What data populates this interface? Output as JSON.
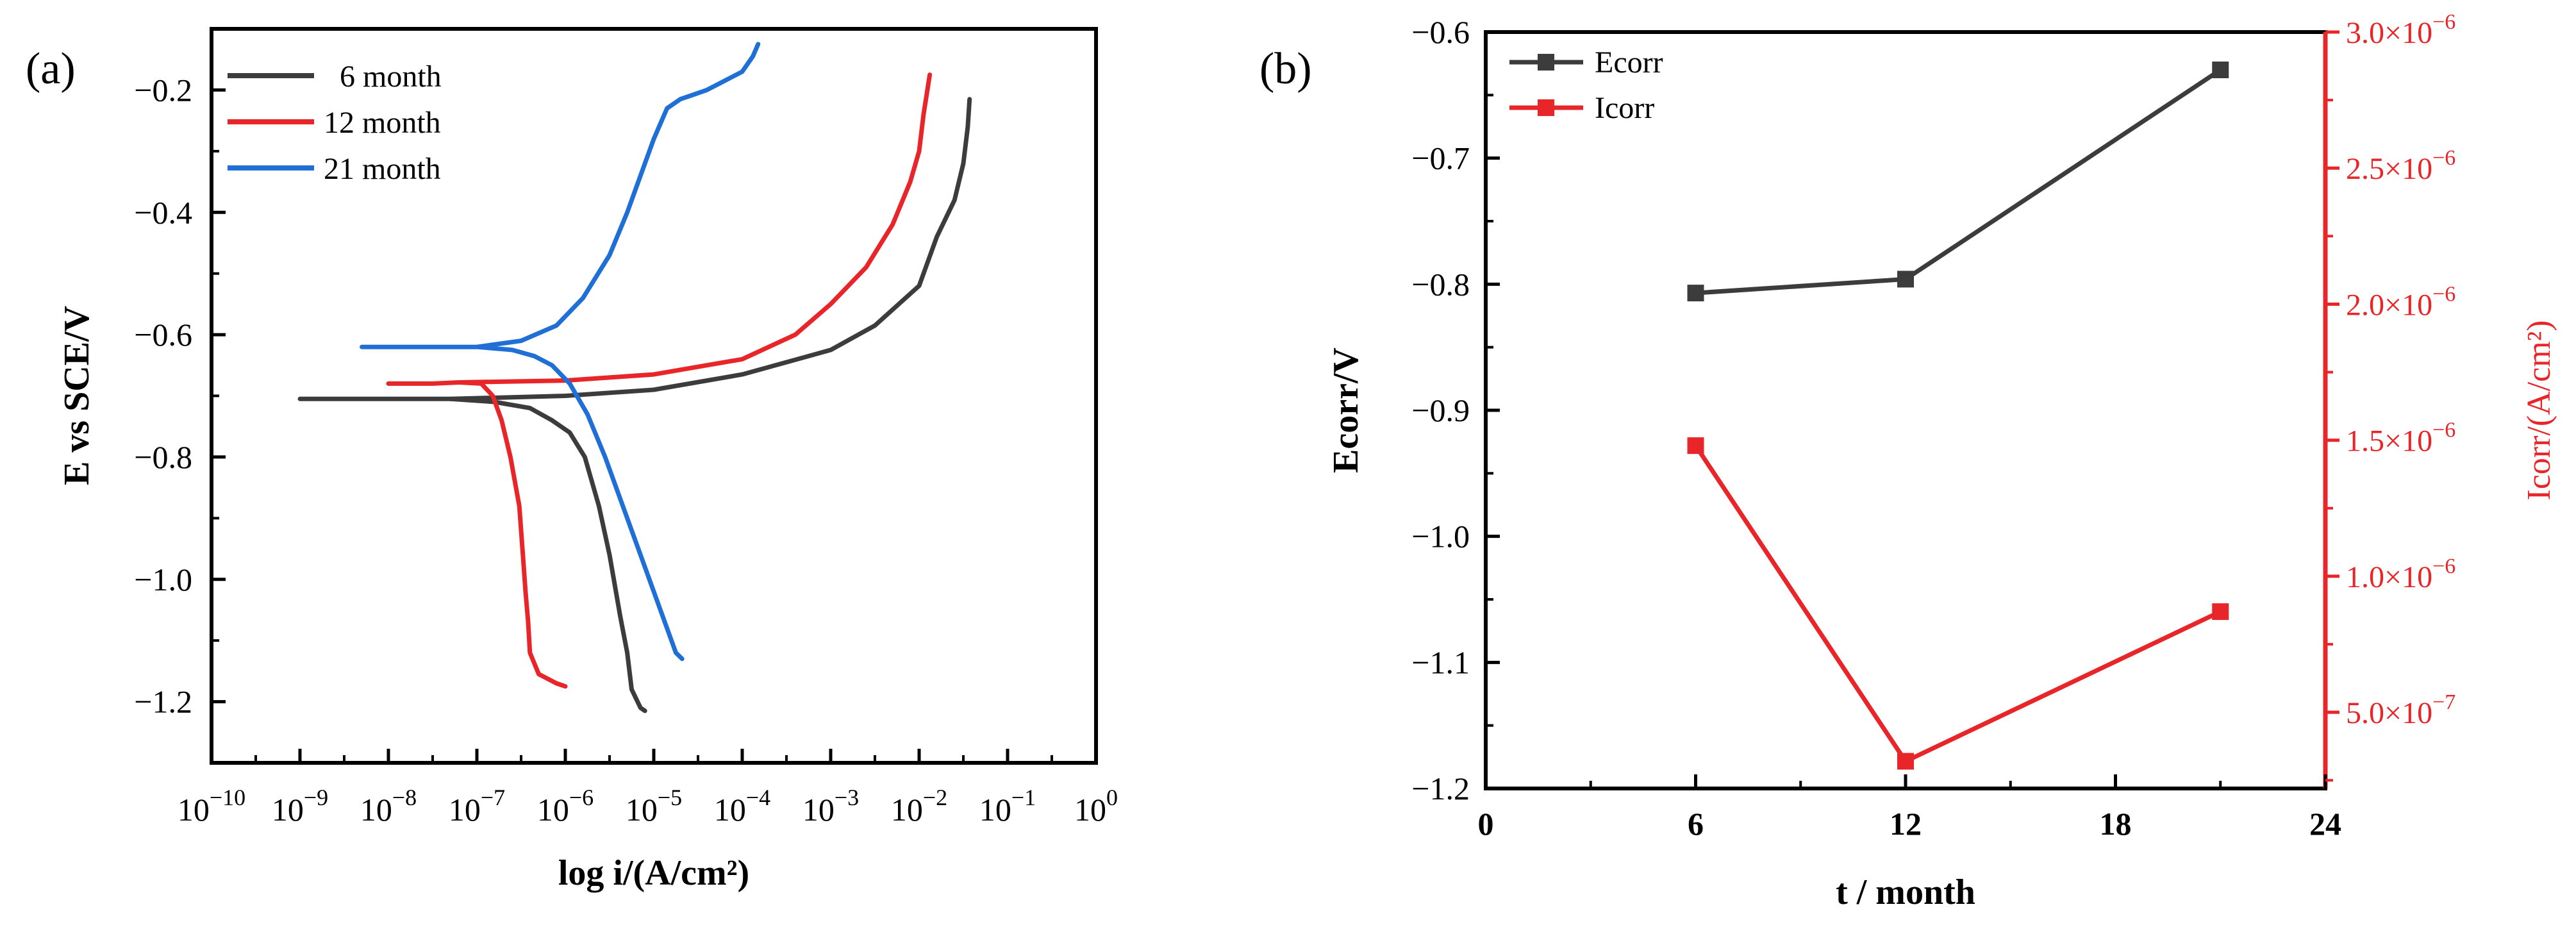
{
  "chart_data": [
    {
      "type": "line",
      "panel_label": "(a)",
      "xlabel": "log i/(A/cm²)",
      "ylabel": "E vs SCE/V",
      "xscale": "log",
      "xlim": [
        -10,
        0
      ],
      "ylim": [
        -1.3,
        -0.1
      ],
      "x_tick_exponents": [
        -10,
        -9,
        -8,
        -7,
        -6,
        -5,
        -4,
        -3,
        -2,
        -1,
        0
      ],
      "x_tick_labels": [
        "10",
        "10",
        "10",
        "10",
        "10",
        "10",
        "10",
        "10",
        "10",
        "10",
        "10"
      ],
      "x_tick_exponent_labels": [
        "−10",
        "−9",
        "−8",
        "−7",
        "−6",
        "−5",
        "−4",
        "−3",
        "−2",
        "−1",
        "0"
      ],
      "y_ticks": [
        -1.2,
        -1.0,
        -0.8,
        -0.6,
        -0.4,
        -0.2
      ],
      "y_tick_labels": [
        "−1.2",
        "−1.0",
        "−0.8",
        "−0.6",
        "−0.4",
        "−0.2"
      ],
      "legend": [
        "6 month",
        "12 month",
        "21 month"
      ],
      "series": [
        {
          "name": "6 month",
          "color": "#3c3c3c",
          "log_i": [
            -9.0,
            -8.0,
            -7.3,
            -6.8,
            -6.4,
            -6.15,
            -5.95,
            -5.78,
            -5.62,
            -5.5,
            -5.38,
            -5.3,
            -5.25,
            -5.15,
            -5.1
          ],
          "E": [
            -0.705,
            -0.705,
            -0.705,
            -0.71,
            -0.72,
            -0.74,
            -0.76,
            -0.8,
            -0.88,
            -0.96,
            -1.06,
            -1.12,
            -1.18,
            -1.21,
            -1.215
          ],
          "anodic_log_i": [
            -7.3,
            -6.0,
            -5.0,
            -4.0,
            -3.0,
            -2.5,
            -2.0,
            -1.8,
            -1.6,
            -1.5,
            -1.45,
            -1.43
          ],
          "anodic_E": [
            -0.705,
            -0.7,
            -0.69,
            -0.665,
            -0.625,
            -0.585,
            -0.52,
            -0.44,
            -0.38,
            -0.32,
            -0.26,
            -0.215
          ]
        },
        {
          "name": "12 month",
          "color": "#e8262a",
          "log_i": [
            -8.0,
            -7.5,
            -7.2,
            -6.95,
            -6.82,
            -6.72,
            -6.62,
            -6.52,
            -6.48,
            -6.45,
            -6.42,
            -6.4,
            -6.3,
            -6.1,
            -6.0
          ],
          "E": [
            -0.68,
            -0.68,
            -0.678,
            -0.68,
            -0.7,
            -0.74,
            -0.8,
            -0.88,
            -0.96,
            -1.02,
            -1.07,
            -1.12,
            -1.155,
            -1.17,
            -1.175
          ],
          "anodic_log_i": [
            -7.2,
            -6.0,
            -5.0,
            -4.0,
            -3.4,
            -3.0,
            -2.6,
            -2.3,
            -2.1,
            -2.0,
            -1.95,
            -1.88
          ],
          "anodic_E": [
            -0.678,
            -0.675,
            -0.665,
            -0.64,
            -0.6,
            -0.55,
            -0.49,
            -0.42,
            -0.35,
            -0.3,
            -0.24,
            -0.175
          ]
        },
        {
          "name": "21 month",
          "color": "#1f6fd6",
          "log_i": [
            -8.3,
            -7.5,
            -7.0,
            -6.6,
            -6.35,
            -6.15,
            -5.95,
            -5.75,
            -5.55,
            -5.35,
            -5.15,
            -4.95,
            -4.75,
            -4.68
          ],
          "E": [
            -0.62,
            -0.62,
            -0.62,
            -0.625,
            -0.635,
            -0.65,
            -0.68,
            -0.73,
            -0.8,
            -0.88,
            -0.96,
            -1.04,
            -1.12,
            -1.13
          ],
          "anodic_log_i": [
            -7.0,
            -6.5,
            -6.1,
            -5.8,
            -5.5,
            -5.3,
            -5.15,
            -5.0,
            -4.85,
            -4.7,
            -4.6,
            -4.4,
            -4.2,
            -4.0,
            -3.88,
            -3.82
          ],
          "anodic_E": [
            -0.62,
            -0.61,
            -0.585,
            -0.54,
            -0.47,
            -0.4,
            -0.34,
            -0.28,
            -0.23,
            -0.215,
            -0.21,
            -0.2,
            -0.185,
            -0.17,
            -0.145,
            -0.125
          ]
        }
      ]
    },
    {
      "type": "line",
      "panel_label": "(b)",
      "xlabel": "t / month",
      "ylabel_left": "Ecorr/V",
      "ylabel_right": "Icorr/(A/cm²)",
      "xlim": [
        0,
        24
      ],
      "x_ticks": [
        0,
        6,
        12,
        18,
        24
      ],
      "x_tick_labels": [
        "0",
        "6",
        "12",
        "18",
        "24"
      ],
      "ylim_left": [
        -1.2,
        -0.6
      ],
      "y_ticks_left": [
        -1.2,
        -1.1,
        -1.0,
        -0.9,
        -0.8,
        -0.7,
        -0.6
      ],
      "y_tick_labels_left": [
        "−1.2",
        "−1.1",
        "−1.0",
        "−0.9",
        "−0.8",
        "−0.7",
        "−0.6"
      ],
      "ylim_right": [
        2.2e-07,
        3e-06
      ],
      "y_ticks_right": [
        5e-07,
        1e-06,
        1.5e-06,
        2e-06,
        2.5e-06,
        3e-06
      ],
      "y_tick_labels_right": [
        "5.0×10",
        "1.0×10",
        "1.5×10",
        "2.0×10",
        "2.5×10",
        "3.0×10"
      ],
      "y_tick_exponent_labels_right": [
        "−7",
        "−6",
        "−6",
        "−6",
        "−6",
        "−6"
      ],
      "legend": [
        "Ecorr",
        "Icorr"
      ],
      "series": [
        {
          "name": "Ecorr",
          "axis": "left",
          "color": "#3c3c3c",
          "x": [
            6,
            12,
            21
          ],
          "y": [
            -0.807,
            -0.796,
            -0.63
          ]
        },
        {
          "name": "Icorr",
          "axis": "right",
          "color": "#e8262a",
          "x": [
            6,
            12,
            21
          ],
          "y": [
            1.48e-06,
            3.2e-07,
            8.7e-07
          ]
        }
      ]
    }
  ]
}
